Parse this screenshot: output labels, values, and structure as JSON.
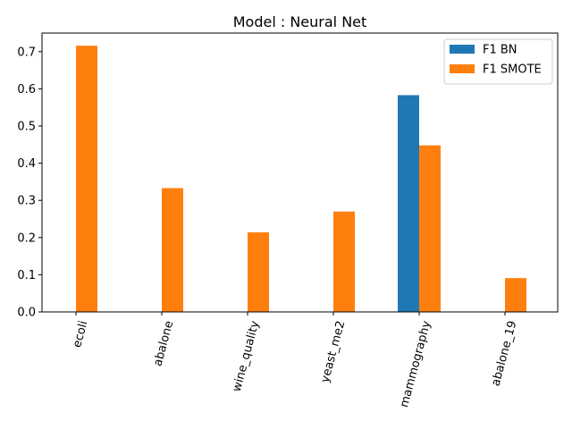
{
  "chart_data": {
    "type": "bar",
    "title": "Model : Neural Net",
    "xlabel": "",
    "ylabel": "",
    "categories": [
      "ecoli",
      "abalone",
      "wine_quality",
      "yeast_me2",
      "mammography",
      "abalone_19"
    ],
    "series": [
      {
        "name": "F1 BN",
        "color": "#1f77b4",
        "values": [
          0.0,
          0.0,
          0.0,
          0.0,
          0.583,
          0.0
        ]
      },
      {
        "name": "F1 SMOTE",
        "color": "#ff7f0e",
        "values": [
          0.716,
          0.333,
          0.214,
          0.27,
          0.448,
          0.091
        ]
      }
    ],
    "ylim": [
      0,
      0.75
    ],
    "yticks": [
      "0.0",
      "0.1",
      "0.2",
      "0.3",
      "0.4",
      "0.5",
      "0.6",
      "0.7"
    ],
    "legend": "top-right",
    "grid": false
  }
}
